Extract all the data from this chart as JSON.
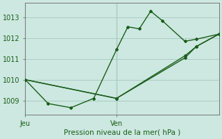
{
  "background_color": "#cce8e0",
  "grid_color": "#aaccc4",
  "line_color": "#1a5c1a",
  "plot_bg": "#cce8e0",
  "title": "Pression niveau de la mer( hPa )",
  "yticks": [
    1009,
    1010,
    1011,
    1012,
    1013
  ],
  "ylim": [
    1008.3,
    1013.7
  ],
  "xtick_labels": [
    "Jeu",
    "Ven"
  ],
  "xtick_positions": [
    0,
    8
  ],
  "xlim": [
    0,
    17
  ],
  "vline_x": [
    0,
    8
  ],
  "series1_x": [
    0,
    2,
    4,
    6,
    8,
    9,
    10,
    11,
    12,
    14,
    15,
    17
  ],
  "series1_y": [
    1010.0,
    1008.85,
    1008.65,
    1009.1,
    1011.45,
    1012.55,
    1012.45,
    1013.3,
    1012.85,
    1011.85,
    1011.95,
    1012.2
  ],
  "series2_x": [
    0,
    8,
    14,
    15,
    17
  ],
  "series2_y": [
    1010.0,
    1009.1,
    1011.05,
    1011.6,
    1012.2
  ],
  "series3_x": [
    0,
    8,
    14,
    15,
    17
  ],
  "series3_y": [
    1010.0,
    1009.1,
    1011.15,
    1011.6,
    1012.2
  ],
  "figsize": [
    3.2,
    2.0
  ],
  "dpi": 100
}
